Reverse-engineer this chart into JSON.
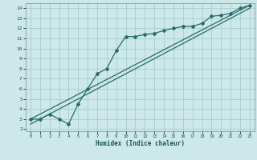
{
  "title": "",
  "xlabel": "Humidex (Indice chaleur)",
  "bg_color": "#cce8e8",
  "grid_color": "#aacccc",
  "line_color": "#2a6b6b",
  "xlim": [
    -0.5,
    23.5
  ],
  "ylim": [
    1.8,
    14.5
  ],
  "xticks": [
    0,
    1,
    2,
    3,
    4,
    5,
    6,
    7,
    8,
    9,
    10,
    11,
    12,
    13,
    14,
    15,
    16,
    17,
    18,
    19,
    20,
    21,
    22,
    23
  ],
  "yticks": [
    2,
    3,
    4,
    5,
    6,
    7,
    8,
    9,
    10,
    11,
    12,
    13,
    14
  ],
  "line1_x": [
    0,
    1,
    2,
    3,
    4,
    5,
    6,
    7,
    8,
    9,
    10,
    11,
    12,
    13,
    14,
    15,
    16,
    17,
    18,
    19,
    20,
    21,
    22,
    23
  ],
  "line1_y": [
    3.0,
    3.0,
    3.5,
    3.0,
    2.5,
    4.5,
    6.0,
    7.5,
    8.0,
    9.8,
    11.2,
    11.2,
    11.4,
    11.5,
    11.8,
    12.0,
    12.2,
    12.2,
    12.5,
    13.2,
    13.3,
    13.5,
    14.0,
    14.3
  ],
  "line2_x": [
    0,
    23
  ],
  "line2_y": [
    3.0,
    14.3
  ],
  "line3_x": [
    0,
    23
  ],
  "line3_y": [
    2.5,
    14.0
  ]
}
